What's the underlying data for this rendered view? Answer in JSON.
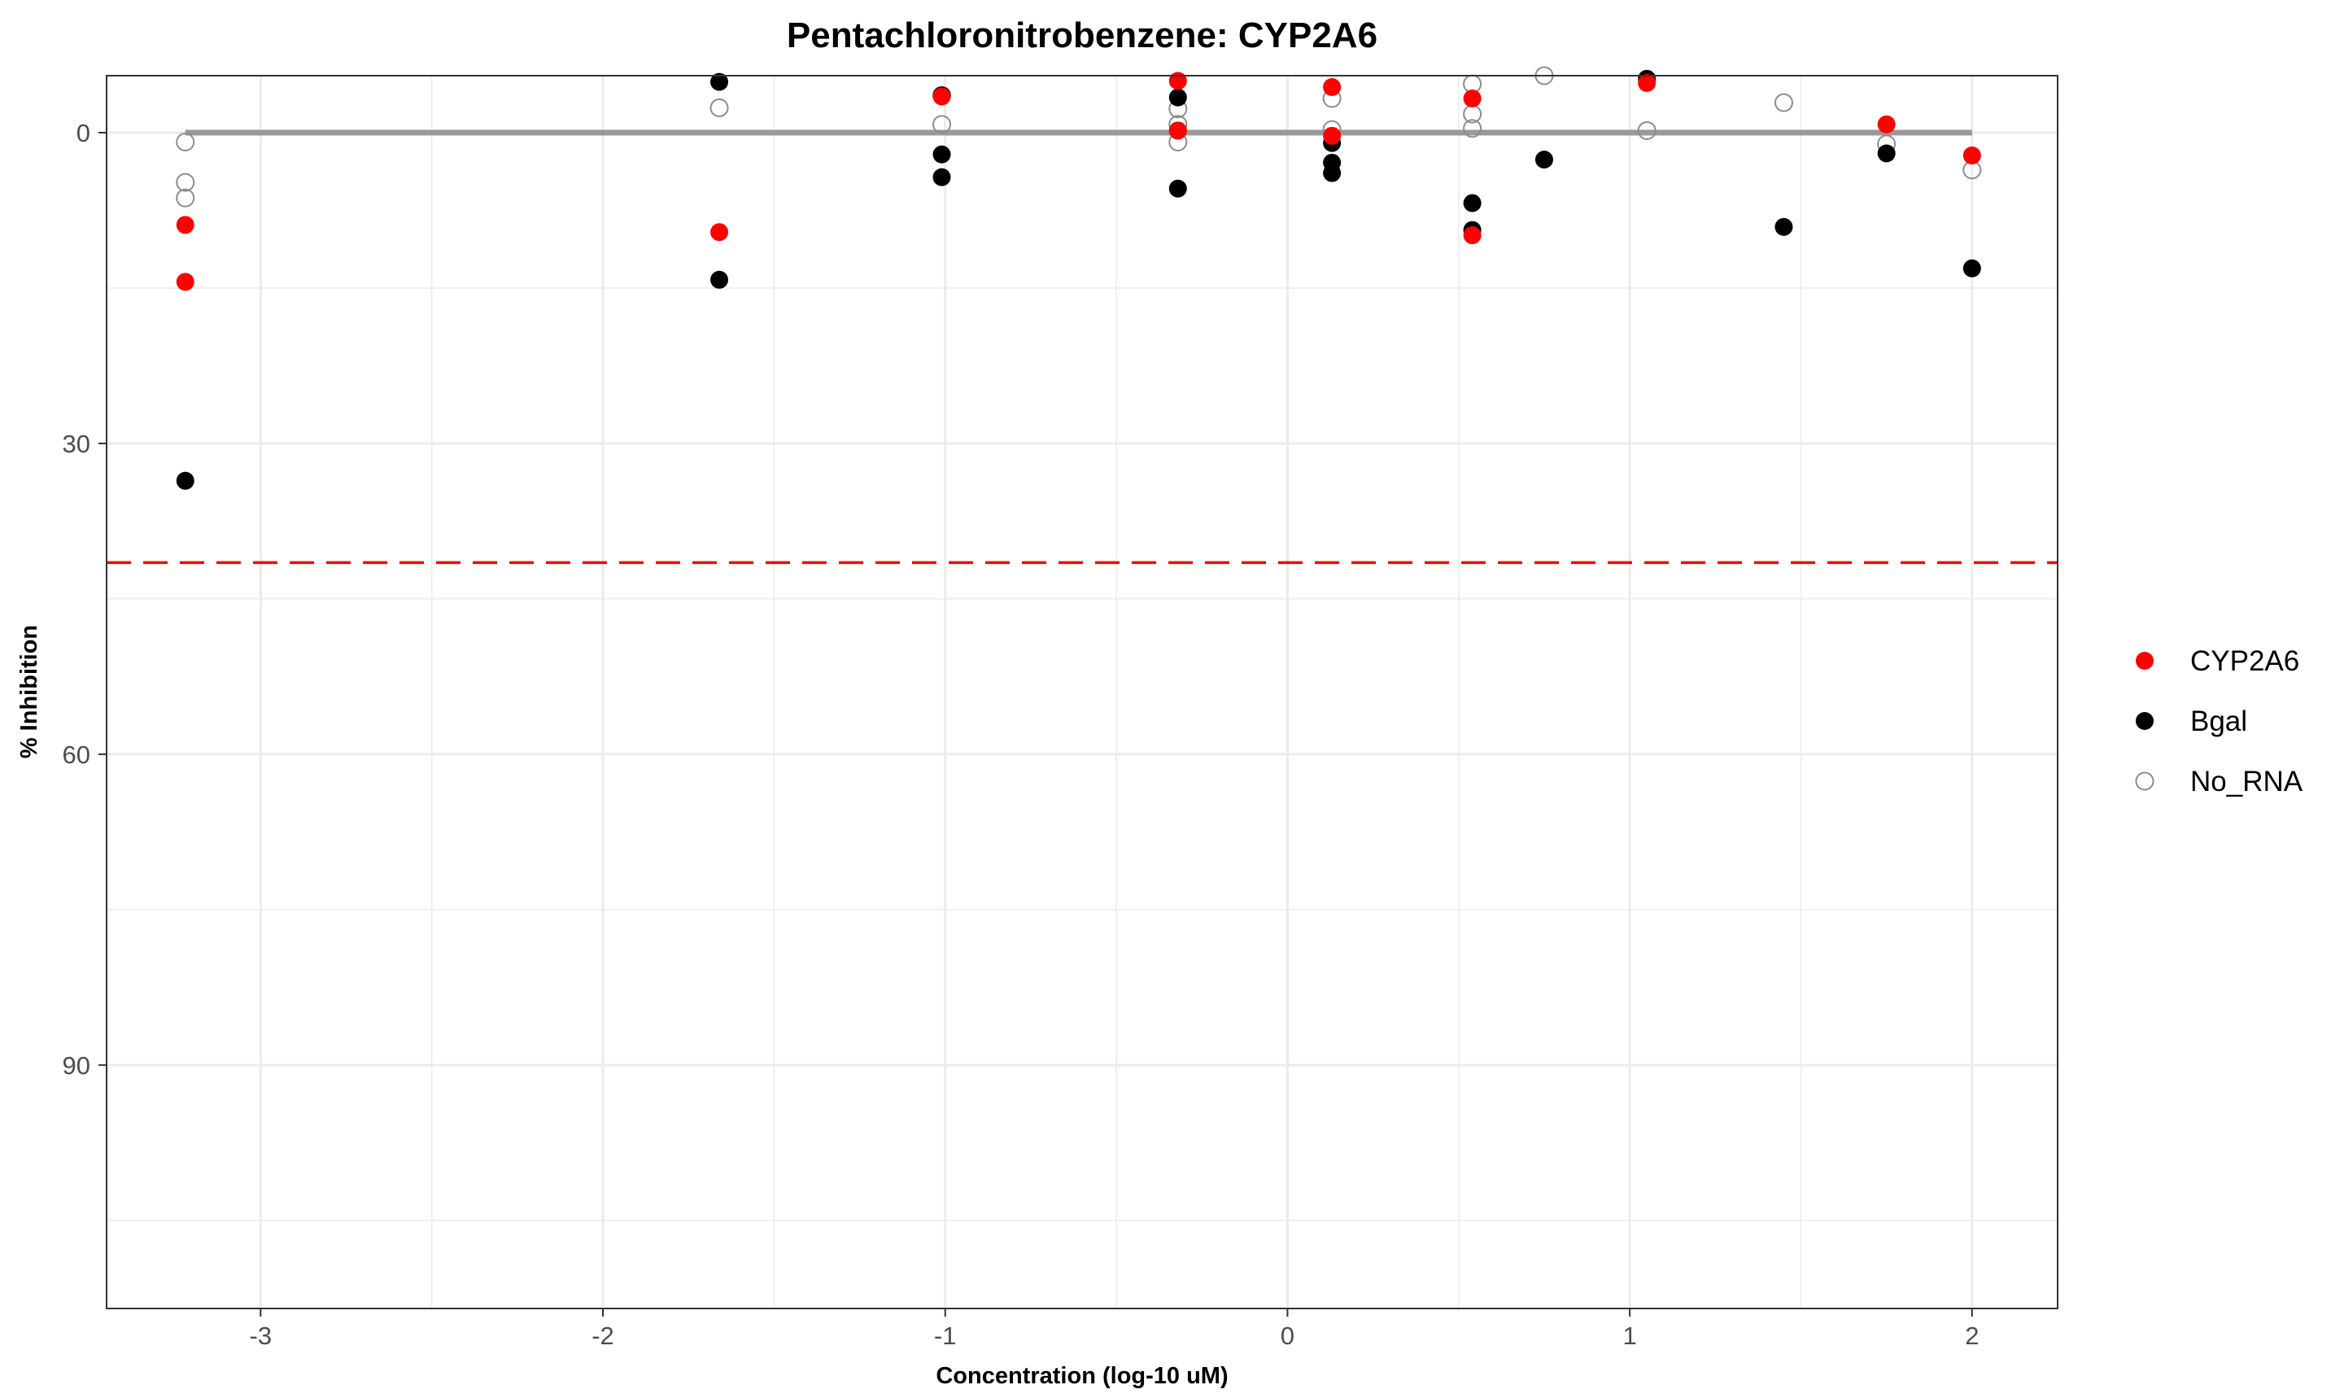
{
  "chart_data": {
    "type": "scatter",
    "title": "Pentachloronitrobenzene: CYP2A6",
    "xlabel": "Concentration (log-10 uM)",
    "ylabel": "% Inhibition",
    "xlim": [
      -3.45,
      2.25
    ],
    "ylim": [
      -5.5,
      113.5
    ],
    "y_reversed": true,
    "x_ticks": [
      -3,
      -2,
      -1,
      0,
      1,
      2
    ],
    "x_tick_labels": [
      "-3",
      "-2",
      "-1",
      "0",
      "1",
      "2"
    ],
    "y_ticks": [
      0,
      30,
      60,
      90
    ],
    "y_tick_labels": [
      "0",
      "30",
      "60",
      "90"
    ],
    "x_minor_grid": [
      -2.5,
      -1.5,
      -0.5,
      0.5,
      1.5
    ],
    "y_minor_grid": [
      15,
      45,
      75,
      105
    ],
    "grid": true,
    "legend_position": "right",
    "colors": {
      "CYP2A6": "#ff0000",
      "Bgal": "#000000",
      "No_RNA": "#8c8c8c",
      "fit_line": "#999999",
      "threshold": "#ff0000",
      "grid": "#ebebeb",
      "panel_border": "#333333"
    },
    "series": [
      {
        "name": "CYP2A6",
        "marker": "filled",
        "points": [
          {
            "x": -3.22,
            "y": 8.9
          },
          {
            "x": -3.22,
            "y": 14.4
          },
          {
            "x": -1.66,
            "y": 9.6
          },
          {
            "x": -1.01,
            "y": -3.5
          },
          {
            "x": -0.32,
            "y": -5.0
          },
          {
            "x": -0.32,
            "y": -0.2
          },
          {
            "x": 0.13,
            "y": -4.4
          },
          {
            "x": 0.13,
            "y": 0.3
          },
          {
            "x": 0.54,
            "y": -3.3
          },
          {
            "x": 0.54,
            "y": 9.9
          },
          {
            "x": 1.05,
            "y": -4.8
          },
          {
            "x": 1.75,
            "y": -0.8
          },
          {
            "x": 2.0,
            "y": 2.2
          }
        ]
      },
      {
        "name": "Bgal",
        "marker": "filled",
        "points": [
          {
            "x": -3.22,
            "y": 33.6
          },
          {
            "x": -1.66,
            "y": -4.9
          },
          {
            "x": -1.66,
            "y": 14.2
          },
          {
            "x": -1.01,
            "y": -3.6
          },
          {
            "x": -1.01,
            "y": 2.1
          },
          {
            "x": -1.01,
            "y": 4.3
          },
          {
            "x": -0.32,
            "y": -3.4
          },
          {
            "x": -0.32,
            "y": -0.2
          },
          {
            "x": -0.32,
            "y": 5.4
          },
          {
            "x": 0.13,
            "y": 1.0
          },
          {
            "x": 0.13,
            "y": 2.9
          },
          {
            "x": 0.13,
            "y": 3.9
          },
          {
            "x": 0.54,
            "y": 6.8
          },
          {
            "x": 0.54,
            "y": 9.4
          },
          {
            "x": 0.75,
            "y": 2.6
          },
          {
            "x": 1.05,
            "y": -5.2
          },
          {
            "x": 1.45,
            "y": 9.1
          },
          {
            "x": 1.75,
            "y": 2.0
          },
          {
            "x": 2.0,
            "y": 13.1
          }
        ]
      },
      {
        "name": "No_RNA",
        "marker": "open",
        "points": [
          {
            "x": -3.22,
            "y": 0.9
          },
          {
            "x": -3.22,
            "y": 4.8
          },
          {
            "x": -3.22,
            "y": 6.3
          },
          {
            "x": -1.66,
            "y": -2.4
          },
          {
            "x": -1.01,
            "y": -3.6
          },
          {
            "x": -1.01,
            "y": -0.8
          },
          {
            "x": -0.32,
            "y": -2.3
          },
          {
            "x": -0.32,
            "y": -0.8
          },
          {
            "x": -0.32,
            "y": 0.9
          },
          {
            "x": 0.13,
            "y": -3.3
          },
          {
            "x": 0.13,
            "y": -0.3
          },
          {
            "x": 0.54,
            "y": -4.7
          },
          {
            "x": 0.54,
            "y": -1.8
          },
          {
            "x": 0.54,
            "y": -0.4
          },
          {
            "x": 0.75,
            "y": -5.5
          },
          {
            "x": 1.05,
            "y": -0.2
          },
          {
            "x": 1.45,
            "y": -2.9
          },
          {
            "x": 1.75,
            "y": 1.1
          },
          {
            "x": 2.0,
            "y": 3.6
          }
        ]
      }
    ],
    "fit_line": {
      "x": [
        -3.22,
        2.0
      ],
      "y": [
        0,
        0
      ]
    },
    "threshold_line": {
      "y": 41.5,
      "style": "dashed"
    }
  }
}
